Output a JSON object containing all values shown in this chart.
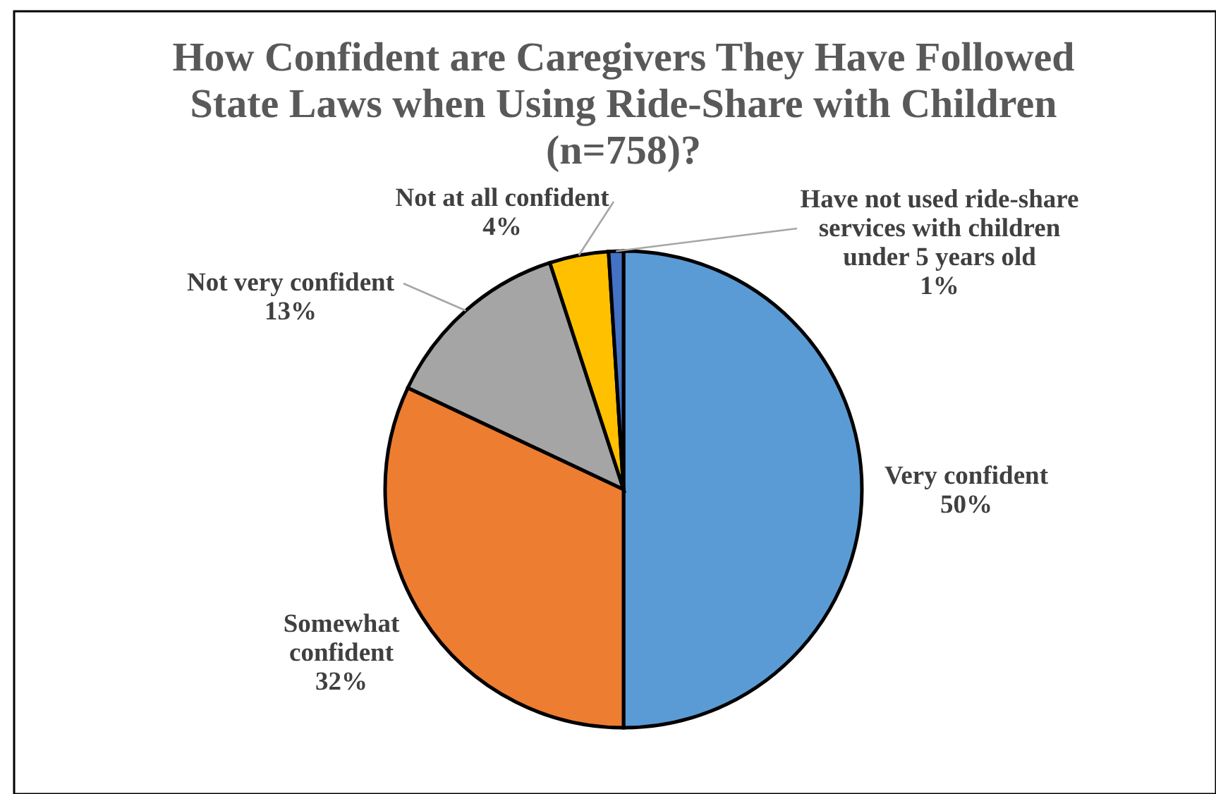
{
  "chart_data": {
    "type": "pie",
    "title": "How Confident are Caregivers They Have Followed State Laws when Using Ride-Share with Children (n=758)?",
    "categories": [
      "Very confident",
      "Somewhat confident",
      "Not very confident",
      "Not at all confident",
      "Have not used ride-share services with children under 5 years old"
    ],
    "values": [
      50,
      32,
      13,
      4,
      1
    ],
    "colors": [
      "#5b9bd5",
      "#ed7d31",
      "#a5a5a5",
      "#ffc000",
      "#4472c4"
    ],
    "value_labels": [
      "50%",
      "32%",
      "13%",
      "4%",
      "1%"
    ]
  }
}
